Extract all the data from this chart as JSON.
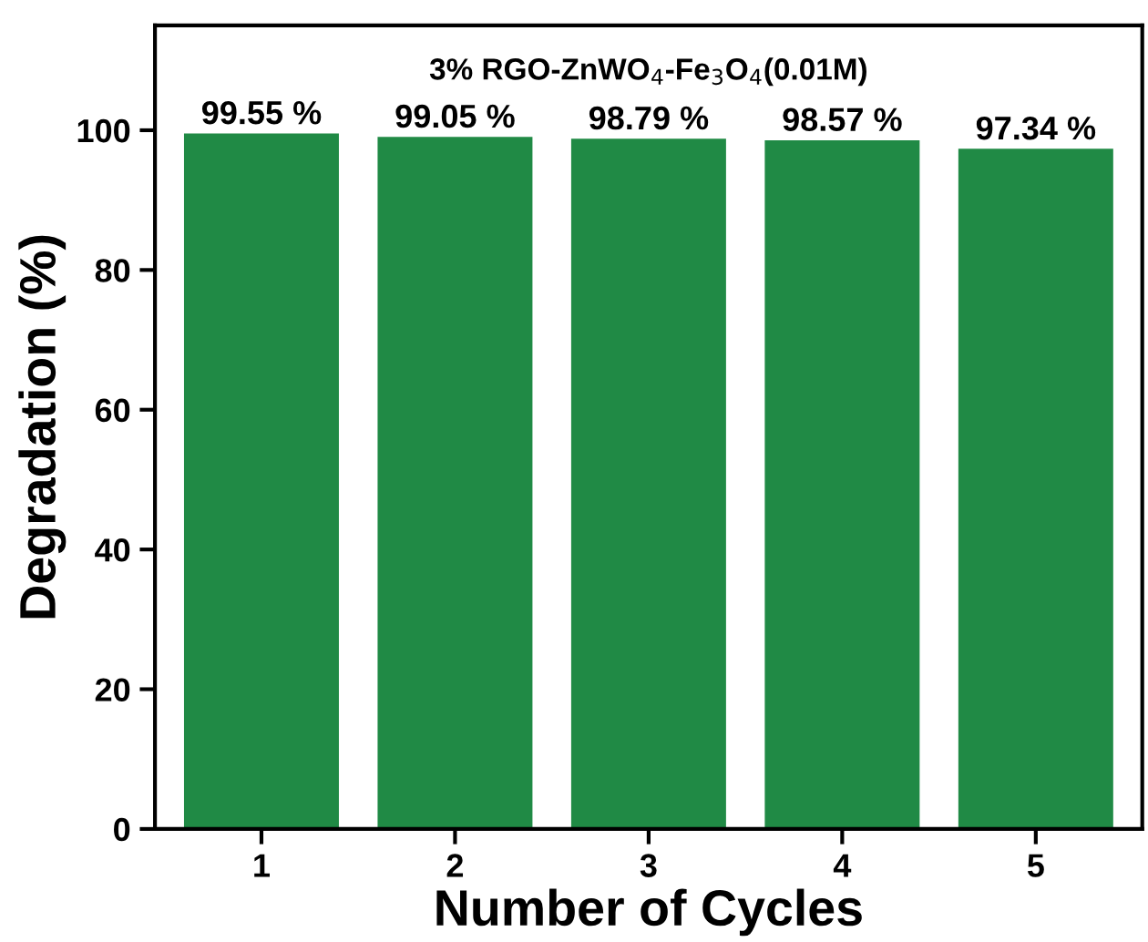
{
  "chart_data": {
    "type": "bar",
    "title": "3% RGO-ZnWO$_{4}$-Fe$_{3}$O$_{4}$(0.01M)",
    "xlabel": "Number of Cycles",
    "ylabel": "Degradation (%)",
    "categories": [
      "1",
      "2",
      "3",
      "4",
      "5"
    ],
    "values": [
      99.55,
      99.05,
      98.79,
      98.57,
      97.34
    ],
    "color": "#208a45",
    "value_labels": [
      "99.55 %",
      "99.05 %",
      "98.79 %",
      "98.57 %",
      "97.34 %"
    ],
    "ylim": [
      0,
      115
    ],
    "yticks": [
      0,
      20,
      40,
      60,
      80,
      100
    ],
    "grid": false,
    "legend": false
  }
}
